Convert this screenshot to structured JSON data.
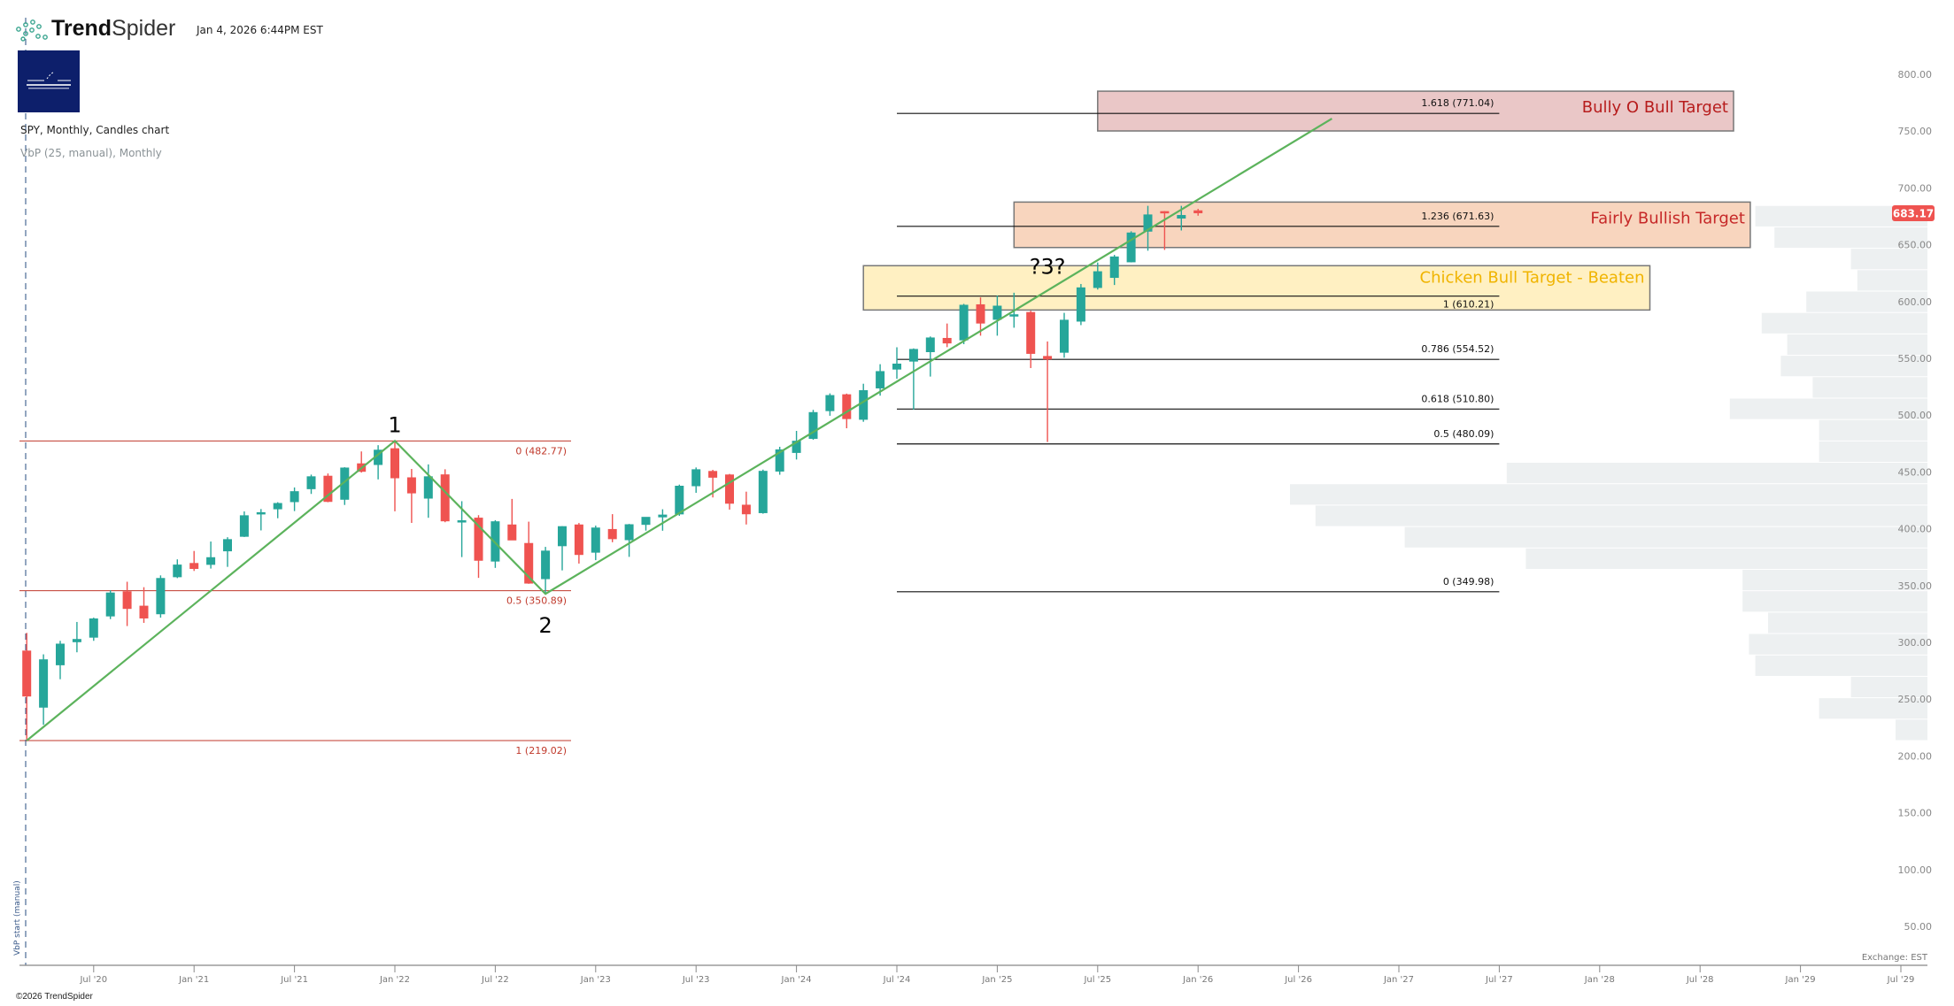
{
  "header": {
    "brand_bold": "Trend",
    "brand_light": "Spider",
    "timestamp": "Jan 4, 2026 6:44PM EST",
    "symbol_line": "SPY, Monthly, Candles chart",
    "indicator_line": "VbP (25, manual), Monthly",
    "vbp_start_label": "VbP start (manual)"
  },
  "footer": {
    "copyright": "©2026 TrendSpider",
    "exchange": "Exchange: EST"
  },
  "colors": {
    "up": "#26A69A",
    "down": "#EF5350",
    "trendline": "#5CB35C",
    "fib_left": "#C0392B",
    "fib_right": "#111111",
    "vbp": "#EDF0F1",
    "box_bull": "#EAC7C7",
    "box_fair": "#F8D5BE",
    "box_chicken": "#FFF0C2",
    "text_bull": "#B71C1C",
    "text_fair": "#C62828",
    "text_chicken": "#F0B400",
    "price_badge": "#EF5350"
  },
  "chart_data": {
    "type": "candlestick",
    "title": "SPY, Monthly, Candles chart",
    "ylim": [
      30,
      820
    ],
    "y_ticks": [
      "50.00",
      "100.00",
      "150.00",
      "200.00",
      "250.00",
      "300.00",
      "350.00",
      "400.00",
      "450.00",
      "500.00",
      "550.00",
      "600.00",
      "650.00",
      "700.00",
      "750.00",
      "800.00"
    ],
    "x_ticks": [
      {
        "label": "Jul '20",
        "t": "2020-07"
      },
      {
        "label": "Jan '21",
        "t": "2021-01"
      },
      {
        "label": "Jul '21",
        "t": "2021-07"
      },
      {
        "label": "Jan '22",
        "t": "2022-01"
      },
      {
        "label": "Jul '22",
        "t": "2022-07"
      },
      {
        "label": "Jan '23",
        "t": "2023-01"
      },
      {
        "label": "Jul '23",
        "t": "2023-07"
      },
      {
        "label": "Jan '24",
        "t": "2024-01"
      },
      {
        "label": "Jul '24",
        "t": "2024-07"
      },
      {
        "label": "Jan '25",
        "t": "2025-01"
      },
      {
        "label": "Jul '25",
        "t": "2025-07"
      },
      {
        "label": "Jan '26",
        "t": "2026-01"
      },
      {
        "label": "Jul '26",
        "t": "2026-07"
      },
      {
        "label": "Jan '27",
        "t": "2027-01"
      },
      {
        "label": "Jul '27",
        "t": "2027-07"
      },
      {
        "label": "Jan '28",
        "t": "2028-01"
      },
      {
        "label": "Jul '28",
        "t": "2028-07"
      },
      {
        "label": "Jan '29",
        "t": "2029-01"
      },
      {
        "label": "Jul '29",
        "t": "2029-07"
      }
    ],
    "last_price": "683.17",
    "candles": [
      [
        "2020-03",
        298.2,
        313.8,
        218.3,
        257.8
      ],
      [
        "2020-04",
        248.0,
        294.9,
        232.9,
        290.5
      ],
      [
        "2020-05",
        285.3,
        306.8,
        273.0,
        304.3
      ],
      [
        "2020-06",
        305.6,
        323.4,
        296.7,
        308.4
      ],
      [
        "2020-07",
        309.6,
        327.2,
        306.8,
        326.5
      ],
      [
        "2020-08",
        328.3,
        351.3,
        325.9,
        349.3
      ],
      [
        "2020-09",
        350.4,
        358.8,
        319.8,
        334.9
      ],
      [
        "2020-10",
        337.7,
        354.0,
        322.6,
        326.5
      ],
      [
        "2020-11",
        330.2,
        364.4,
        327.2,
        362.1
      ],
      [
        "2020-12",
        362.8,
        378.5,
        362.0,
        373.9
      ],
      [
        "2021-01",
        375.3,
        385.9,
        368.3,
        370.1
      ],
      [
        "2021-02",
        373.7,
        394.2,
        370.4,
        380.4
      ],
      [
        "2021-03",
        385.6,
        398.0,
        371.9,
        396.3
      ],
      [
        "2021-04",
        398.4,
        420.7,
        398.2,
        417.3
      ],
      [
        "2021-05",
        419.4,
        422.8,
        404.0,
        420.0
      ],
      [
        "2021-06",
        422.6,
        428.8,
        414.7,
        428.1
      ],
      [
        "2021-07",
        428.9,
        441.8,
        421.0,
        438.5
      ],
      [
        "2021-08",
        440.3,
        453.1,
        436.1,
        451.6
      ],
      [
        "2021-09",
        452.1,
        454.1,
        428.8,
        429.1
      ],
      [
        "2021-10",
        431.0,
        459.6,
        426.4,
        459.3
      ],
      [
        "2021-11",
        463.0,
        473.5,
        454.9,
        455.6
      ],
      [
        "2021-12",
        461.6,
        479.0,
        448.9,
        475.0
      ],
      [
        "2022-01",
        476.3,
        482.8,
        420.8,
        449.9
      ],
      [
        "2022-02",
        450.7,
        458.1,
        410.6,
        436.6
      ],
      [
        "2022-03",
        432.0,
        462.1,
        415.1,
        451.6
      ],
      [
        "2022-04",
        453.3,
        457.8,
        411.2,
        412.0
      ],
      [
        "2022-05",
        412.1,
        429.7,
        380.5,
        412.9
      ],
      [
        "2022-06",
        415.2,
        417.4,
        362.2,
        377.3
      ],
      [
        "2022-07",
        376.6,
        413.0,
        371.0,
        412.0
      ],
      [
        "2022-08",
        409.2,
        431.7,
        395.9,
        395.2
      ],
      [
        "2022-09",
        392.9,
        411.7,
        357.0,
        357.2
      ],
      [
        "2022-10",
        361.1,
        389.5,
        348.1,
        386.2
      ],
      [
        "2022-11",
        390.1,
        407.7,
        368.8,
        407.7
      ],
      [
        "2022-12",
        409.2,
        410.5,
        374.8,
        382.4
      ],
      [
        "2023-01",
        384.4,
        408.2,
        377.8,
        406.5
      ],
      [
        "2023-02",
        405.2,
        418.3,
        393.6,
        396.3
      ],
      [
        "2023-03",
        395.4,
        409.7,
        380.7,
        409.4
      ],
      [
        "2023-04",
        408.9,
        415.1,
        403.8,
        415.9
      ],
      [
        "2023-05",
        415.5,
        422.6,
        403.7,
        417.9
      ],
      [
        "2023-06",
        418.1,
        444.3,
        416.8,
        443.3
      ],
      [
        "2023-07",
        442.9,
        459.4,
        437.1,
        457.8
      ],
      [
        "2023-08",
        456.3,
        457.3,
        433.0,
        450.4
      ],
      [
        "2023-09",
        453.2,
        453.7,
        422.3,
        427.5
      ],
      [
        "2023-10",
        426.6,
        438.1,
        409.2,
        418.2
      ],
      [
        "2023-11",
        419.2,
        457.5,
        418.7,
        456.4
      ],
      [
        "2023-12",
        455.8,
        477.6,
        453.0,
        475.3
      ],
      [
        "2024-01",
        472.2,
        491.6,
        466.4,
        482.9
      ],
      [
        "2024-02",
        484.6,
        510.1,
        483.8,
        508.1
      ],
      [
        "2024-03",
        509.0,
        524.6,
        504.9,
        523.1
      ],
      [
        "2024-04",
        523.8,
        524.4,
        493.9,
        502.0
      ],
      [
        "2024-05",
        501.4,
        533.1,
        499.6,
        527.4
      ],
      [
        "2024-06",
        529.0,
        550.3,
        522.6,
        544.2
      ],
      [
        "2024-07",
        545.6,
        565.2,
        537.5,
        550.8
      ],
      [
        "2024-08",
        552.6,
        564.2,
        510.3,
        563.7
      ],
      [
        "2024-09",
        560.9,
        574.7,
        539.4,
        573.8
      ],
      [
        "2024-10",
        573.4,
        586.1,
        565.3,
        568.6
      ],
      [
        "2024-11",
        571.3,
        603.4,
        567.9,
        602.6
      ],
      [
        "2024-12",
        603.0,
        609.1,
        575.4,
        586.1
      ],
      [
        "2025-01",
        589.4,
        610.8,
        575.4,
        601.8
      ],
      [
        "2025-02",
        592.7,
        613.2,
        582.4,
        594.2
      ],
      [
        "2025-03",
        596.2,
        597.3,
        546.9,
        559.4
      ],
      [
        "2025-04",
        557.5,
        570.3,
        481.8,
        554.5
      ],
      [
        "2025-05",
        560.4,
        595.5,
        556.0,
        589.4
      ],
      [
        "2025-06",
        587.8,
        620.9,
        584.7,
        617.9
      ],
      [
        "2025-07",
        617.4,
        639.8,
        616.0,
        632.1
      ],
      [
        "2025-08",
        626.3,
        646.5,
        620.0,
        645.1
      ],
      [
        "2025-09",
        640.0,
        667.3,
        639.9,
        666.2
      ],
      [
        "2025-10",
        667.0,
        689.7,
        650.2,
        682.1
      ],
      [
        "2025-11",
        685.0,
        685.1,
        650.9,
        683.4
      ],
      [
        "2025-12",
        678.5,
        689.7,
        668.0,
        681.6
      ],
      [
        "2026-01",
        685.7,
        687.0,
        681.0,
        683.17
      ]
    ],
    "volume_profile": {
      "bins": 25,
      "price_range": [
        219.0,
        690.0
      ],
      "relative_volume_top_to_bottom": [
        27,
        24,
        12,
        11,
        19,
        26,
        22,
        23,
        18,
        31,
        17,
        17,
        66,
        100,
        96,
        82,
        63,
        29,
        29,
        25,
        28,
        27,
        12,
        17,
        5
      ]
    },
    "fib_left": {
      "color_key": "fib_left",
      "t_range": [
        "2020-02",
        "2022-11"
      ],
      "levels": [
        {
          "label": "0 (482.77)",
          "price": 482.77
        },
        {
          "label": "0.5 (350.89)",
          "price": 350.89
        },
        {
          "label": "1 (219.02)",
          "price": 219.02
        }
      ]
    },
    "fib_right": {
      "t_range": [
        "2024-07",
        "2027-07"
      ],
      "levels": [
        {
          "label": "1.618 (771.04)",
          "price": 771.04
        },
        {
          "label": "1.236 (671.63)",
          "price": 671.63
        },
        {
          "label": "1 (610.21)",
          "price": 610.21
        },
        {
          "label": "0.786 (554.52)",
          "price": 554.52
        },
        {
          "label": "0.618 (510.80)",
          "price": 510.8
        },
        {
          "label": "0.5 (480.09)",
          "price": 480.09
        },
        {
          "label": "0 (349.98)",
          "price": 349.98
        }
      ]
    },
    "target_boxes": [
      {
        "label": "Bully O Bull Target",
        "t_range": [
          "2025-07",
          "2028-09"
        ],
        "price_range": [
          755.6,
          790.6
        ],
        "fill": "box_bull",
        "text": "text_bull"
      },
      {
        "label": "Fairly Bullish Target",
        "t_range": [
          "2025-02",
          "2028-10"
        ],
        "price_range": [
          653.0,
          693.0
        ],
        "fill": "box_fair",
        "text": "text_fair"
      },
      {
        "label": "Chicken Bull Target - Beaten",
        "t_range": [
          "2024-05",
          "2028-04"
        ],
        "price_range": [
          598.0,
          637.0
        ],
        "fill": "box_chicken",
        "text": "text_chicken"
      }
    ],
    "wave_path": [
      {
        "t": "2020-03",
        "price": 219.02
      },
      {
        "t": "2022-01",
        "price": 482.77
      },
      {
        "t": "2022-10",
        "price": 348.1
      },
      {
        "t": "2026-09",
        "price": 766.5
      }
    ],
    "wave_labels": [
      {
        "label": "1",
        "t": "2022-01",
        "price": 482.77,
        "pos": "above"
      },
      {
        "label": "2",
        "t": "2022-10",
        "price": 348.1,
        "pos": "below"
      },
      {
        "label": "?3?",
        "t": "2025-04",
        "price": 622,
        "pos": "above"
      }
    ]
  }
}
